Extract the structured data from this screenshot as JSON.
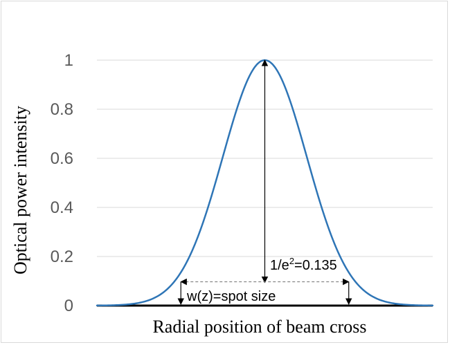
{
  "chart_data": {
    "type": "line",
    "title": "",
    "xlabel": "Radial position of beam cross",
    "ylabel": "Optical power intensity",
    "ylim": [
      0,
      1
    ],
    "xlim": [
      -2,
      2
    ],
    "yticks": [
      "0",
      "0.2",
      "0.4",
      "0.6",
      "0.8",
      "1"
    ],
    "grid": true,
    "legend": "none",
    "series": [
      {
        "color": "#2e75b6",
        "function": "exp(-2*x^2)",
        "x": [
          -2.0,
          -1.8,
          -1.6,
          -1.4,
          -1.2,
          -1.0,
          -0.8,
          -0.6,
          -0.4,
          -0.2,
          0.0,
          0.2,
          0.4,
          0.6,
          0.8,
          1.0,
          1.2,
          1.4,
          1.6,
          1.8,
          2.0
        ],
        "y": [
          0.0003,
          0.0015,
          0.006,
          0.02,
          0.056,
          0.135,
          0.278,
          0.487,
          0.726,
          0.923,
          1.0,
          0.923,
          0.726,
          0.487,
          0.278,
          0.135,
          0.056,
          0.02,
          0.006,
          0.0015,
          0.0003
        ]
      }
    ],
    "annotations": {
      "peak_label": "1/e",
      "peak_label_sup": "2",
      "peak_label_value": "=0.135",
      "width_label": "w(z)=spot size",
      "threshold_y": 0.097,
      "threshold_x": 1.0
    }
  }
}
